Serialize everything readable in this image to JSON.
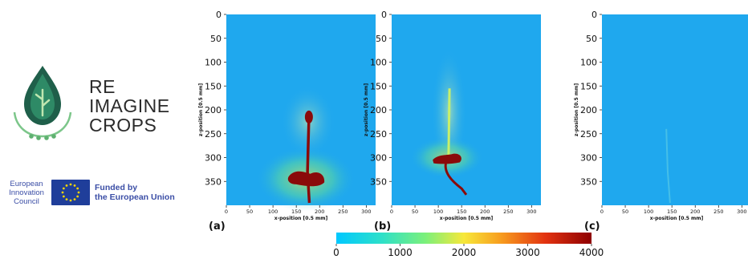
{
  "logo": {
    "line1": "RE",
    "line2": "IMAGINE",
    "line3": "CROPS",
    "icon": "leaf-drop-icon",
    "color": "#1f5f4a"
  },
  "eic": {
    "line1": "European",
    "line2": "Innovation",
    "line3": "Council"
  },
  "eu": {
    "line1": "Funded by",
    "line2": "the European Union",
    "icon": "eu-flag-icon",
    "color": "#1f3e9a"
  },
  "chart_data": [
    {
      "type": "heatmap",
      "panel_label": "(a)",
      "xlabel": "x-position [0.5 mm]",
      "ylabel": "z-position [0.5 mm]",
      "xlim": [
        0,
        320
      ],
      "ylim": [
        0,
        400
      ],
      "x_ticks": [
        0,
        50,
        100,
        150,
        200,
        250,
        300
      ],
      "y_ticks": [
        0,
        50,
        100,
        150,
        200,
        250,
        300,
        350
      ],
      "y_inverted": true
    },
    {
      "type": "heatmap",
      "panel_label": "(b)",
      "xlabel": "x-position [0.5 mm]",
      "ylabel": "z-position [0.5 mm]",
      "xlim": [
        0,
        320
      ],
      "ylim": [
        0,
        400
      ],
      "x_ticks": [
        0,
        50,
        100,
        150,
        200,
        250,
        300
      ],
      "y_ticks": [
        0,
        50,
        100,
        150,
        200,
        250,
        300,
        350
      ],
      "y_inverted": true
    },
    {
      "type": "heatmap",
      "panel_label": "(c)",
      "xlabel": "x-position [0.5 mm]",
      "ylabel": "z-position [0.5 mm]",
      "xlim": [
        0,
        320
      ],
      "ylim": [
        0,
        400
      ],
      "x_ticks": [
        0,
        50,
        100,
        150,
        200,
        250,
        300
      ],
      "y_ticks": [
        0,
        50,
        100,
        150,
        200,
        250,
        300,
        350
      ],
      "y_inverted": true
    }
  ],
  "colorbar": {
    "min": 0,
    "max": 4000,
    "ticks": [
      0,
      1000,
      2000,
      3000,
      4000
    ],
    "colormap": [
      "#00c8ff",
      "#2ee0c8",
      "#7cf07a",
      "#f7e83a",
      "#f79a1e",
      "#e23210",
      "#8e0000"
    ]
  },
  "heatmap_colors": {
    "background": "#1fa8ee",
    "root": "#8a0a0a",
    "halo": "#f4c23a"
  }
}
